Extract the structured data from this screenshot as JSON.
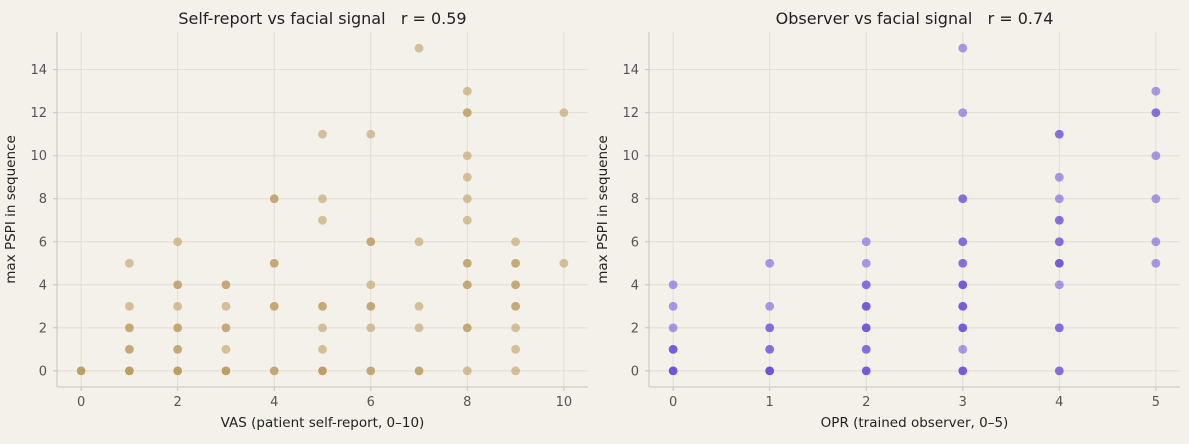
{
  "chart_data": [
    {
      "type": "scatter",
      "title": "Self-report vs facial signal   r = 0.59",
      "xlabel": "VAS (patient self-report, 0–10)",
      "ylabel": "max PSPI in sequence",
      "xlim": [
        -0.5,
        10.5
      ],
      "ylim": [
        -0.75,
        15.75
      ],
      "xticks": [
        0,
        2,
        4,
        6,
        8,
        10
      ],
      "yticks": [
        0,
        2,
        4,
        6,
        8,
        10,
        12,
        14
      ],
      "grid": true,
      "color": "#b8975a",
      "points": [
        [
          0,
          0
        ],
        [
          0,
          0
        ],
        [
          0,
          0
        ],
        [
          1,
          0
        ],
        [
          1,
          0
        ],
        [
          1,
          0
        ],
        [
          1,
          1
        ],
        [
          1,
          1
        ],
        [
          1,
          2
        ],
        [
          1,
          2
        ],
        [
          1,
          3
        ],
        [
          1,
          5
        ],
        [
          2,
          0
        ],
        [
          2,
          0
        ],
        [
          2,
          0
        ],
        [
          2,
          1
        ],
        [
          2,
          1
        ],
        [
          2,
          2
        ],
        [
          2,
          2
        ],
        [
          2,
          3
        ],
        [
          2,
          4
        ],
        [
          2,
          4
        ],
        [
          2,
          6
        ],
        [
          3,
          0
        ],
        [
          3,
          0
        ],
        [
          3,
          0
        ],
        [
          3,
          1
        ],
        [
          3,
          2
        ],
        [
          3,
          2
        ],
        [
          3,
          3
        ],
        [
          3,
          4
        ],
        [
          3,
          4
        ],
        [
          4,
          0
        ],
        [
          4,
          0
        ],
        [
          4,
          3
        ],
        [
          4,
          3
        ],
        [
          4,
          5
        ],
        [
          4,
          5
        ],
        [
          4,
          8
        ],
        [
          4,
          8
        ],
        [
          5,
          0
        ],
        [
          5,
          0
        ],
        [
          5,
          0
        ],
        [
          5,
          1
        ],
        [
          5,
          2
        ],
        [
          5,
          3
        ],
        [
          5,
          3
        ],
        [
          5,
          7
        ],
        [
          5,
          8
        ],
        [
          5,
          11
        ],
        [
          6,
          0
        ],
        [
          6,
          0
        ],
        [
          6,
          2
        ],
        [
          6,
          3
        ],
        [
          6,
          3
        ],
        [
          6,
          4
        ],
        [
          6,
          6
        ],
        [
          6,
          6
        ],
        [
          6,
          11
        ],
        [
          7,
          0
        ],
        [
          7,
          0
        ],
        [
          7,
          2
        ],
        [
          7,
          3
        ],
        [
          7,
          6
        ],
        [
          7,
          15
        ],
        [
          8,
          0
        ],
        [
          8,
          2
        ],
        [
          8,
          2
        ],
        [
          8,
          4
        ],
        [
          8,
          4
        ],
        [
          8,
          5
        ],
        [
          8,
          5
        ],
        [
          8,
          7
        ],
        [
          8,
          8
        ],
        [
          8,
          9
        ],
        [
          8,
          10
        ],
        [
          8,
          12
        ],
        [
          8,
          12
        ],
        [
          8,
          13
        ],
        [
          9,
          0
        ],
        [
          9,
          1
        ],
        [
          9,
          2
        ],
        [
          9,
          3
        ],
        [
          9,
          3
        ],
        [
          9,
          4
        ],
        [
          9,
          4
        ],
        [
          9,
          5
        ],
        [
          9,
          5
        ],
        [
          9,
          6
        ],
        [
          10,
          5
        ],
        [
          10,
          12
        ]
      ]
    },
    {
      "type": "scatter",
      "title": "Observer vs facial signal   r = 0.74",
      "xlabel": "OPR (trained observer, 0–5)",
      "ylabel": "max PSPI in sequence",
      "xlim": [
        -0.25,
        5.25
      ],
      "ylim": [
        -0.75,
        15.75
      ],
      "xticks": [
        0,
        1,
        2,
        3,
        4,
        5
      ],
      "yticks": [
        0,
        2,
        4,
        6,
        8,
        10,
        12,
        14
      ],
      "grid": true,
      "color": "#6a4fd8",
      "points": [
        [
          0,
          0
        ],
        [
          0,
          0
        ],
        [
          0,
          0
        ],
        [
          0,
          0
        ],
        [
          0,
          1
        ],
        [
          0,
          1
        ],
        [
          0,
          1
        ],
        [
          0,
          2
        ],
        [
          0,
          3
        ],
        [
          0,
          4
        ],
        [
          1,
          0
        ],
        [
          1,
          0
        ],
        [
          1,
          0
        ],
        [
          1,
          0
        ],
        [
          1,
          1
        ],
        [
          1,
          1
        ],
        [
          1,
          2
        ],
        [
          1,
          2
        ],
        [
          1,
          3
        ],
        [
          1,
          5
        ],
        [
          2,
          0
        ],
        [
          2,
          0
        ],
        [
          2,
          0
        ],
        [
          2,
          1
        ],
        [
          2,
          1
        ],
        [
          2,
          2
        ],
        [
          2,
          2
        ],
        [
          2,
          2
        ],
        [
          2,
          3
        ],
        [
          2,
          3
        ],
        [
          2,
          3
        ],
        [
          2,
          4
        ],
        [
          2,
          4
        ],
        [
          2,
          5
        ],
        [
          2,
          6
        ],
        [
          3,
          0
        ],
        [
          3,
          0
        ],
        [
          3,
          0
        ],
        [
          3,
          1
        ],
        [
          3,
          2
        ],
        [
          3,
          2
        ],
        [
          3,
          2
        ],
        [
          3,
          3
        ],
        [
          3,
          3
        ],
        [
          3,
          3
        ],
        [
          3,
          4
        ],
        [
          3,
          4
        ],
        [
          3,
          4
        ],
        [
          3,
          5
        ],
        [
          3,
          5
        ],
        [
          3,
          6
        ],
        [
          3,
          6
        ],
        [
          3,
          8
        ],
        [
          3,
          8
        ],
        [
          3,
          12
        ],
        [
          3,
          15
        ],
        [
          4,
          0
        ],
        [
          4,
          0
        ],
        [
          4,
          2
        ],
        [
          4,
          2
        ],
        [
          4,
          4
        ],
        [
          4,
          5
        ],
        [
          4,
          5
        ],
        [
          4,
          5
        ],
        [
          4,
          6
        ],
        [
          4,
          6
        ],
        [
          4,
          7
        ],
        [
          4,
          7
        ],
        [
          4,
          8
        ],
        [
          4,
          9
        ],
        [
          4,
          11
        ],
        [
          4,
          11
        ],
        [
          5,
          5
        ],
        [
          5,
          6
        ],
        [
          5,
          8
        ],
        [
          5,
          10
        ],
        [
          5,
          12
        ],
        [
          5,
          12
        ],
        [
          5,
          13
        ]
      ]
    }
  ]
}
